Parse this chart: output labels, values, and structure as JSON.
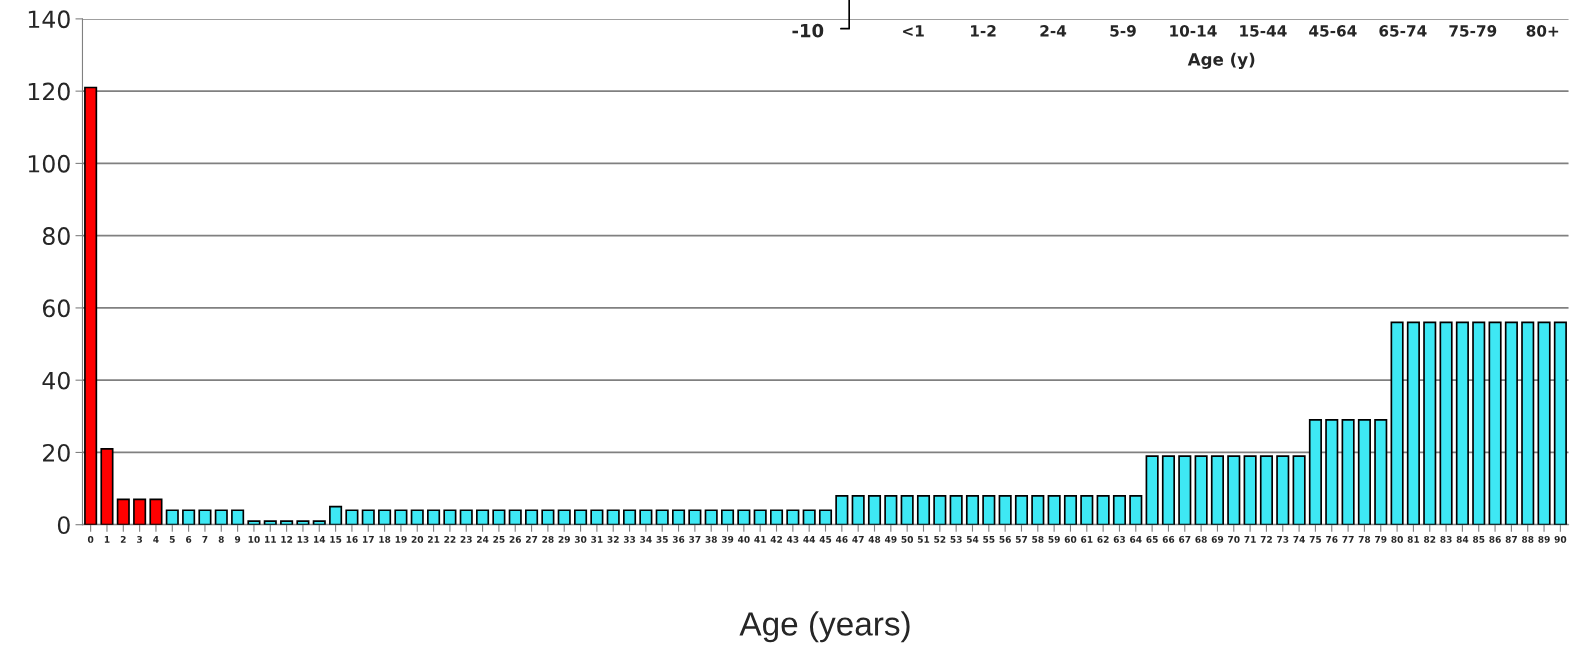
{
  "chart_data": [
    {
      "type": "bar",
      "xlabel": "Age (years)",
      "categories": [
        "0",
        "1",
        "2",
        "3",
        "4",
        "5",
        "6",
        "7",
        "8",
        "9",
        "10",
        "11",
        "12",
        "13",
        "14",
        "15",
        "16",
        "17",
        "18",
        "19",
        "20",
        "21",
        "22",
        "23",
        "24",
        "25",
        "26",
        "27",
        "28",
        "29",
        "30",
        "31",
        "32",
        "33",
        "34",
        "35",
        "36",
        "37",
        "38",
        "39",
        "40",
        "41",
        "42",
        "43",
        "44",
        "45",
        "46",
        "47",
        "48",
        "49",
        "50",
        "51",
        "52",
        "53",
        "54",
        "55",
        "56",
        "57",
        "58",
        "59",
        "60",
        "61",
        "62",
        "63",
        "64",
        "65",
        "66",
        "67",
        "68",
        "69",
        "70",
        "71",
        "72",
        "73",
        "74",
        "75",
        "76",
        "77",
        "78",
        "79",
        "80",
        "81",
        "82",
        "83",
        "84",
        "85",
        "86",
        "87",
        "88",
        "89",
        "90"
      ],
      "values": [
        121,
        21,
        7,
        7,
        7,
        4,
        4,
        4,
        4,
        4,
        1,
        1,
        1,
        1,
        1,
        5,
        4,
        4,
        4,
        4,
        4,
        4,
        4,
        4,
        4,
        4,
        4,
        4,
        4,
        4,
        4,
        4,
        4,
        4,
        4,
        4,
        4,
        4,
        4,
        4,
        4,
        4,
        4,
        4,
        4,
        4,
        8,
        8,
        8,
        8,
        8,
        8,
        8,
        8,
        8,
        8,
        8,
        8,
        8,
        8,
        8,
        8,
        8,
        8,
        8,
        19,
        19,
        19,
        19,
        19,
        19,
        19,
        19,
        19,
        19,
        29,
        29,
        29,
        29,
        29,
        56,
        56,
        56,
        56,
        56,
        56,
        56,
        56,
        56,
        56,
        56
      ],
      "colors": [
        "#ff0000",
        "#ff0000",
        "#ff0000",
        "#ff0000",
        "#ff0000",
        "#3ee8f4",
        "#3ee8f4",
        "#3ee8f4",
        "#3ee8f4",
        "#3ee8f4",
        "#3ee8f4",
        "#3ee8f4",
        "#3ee8f4",
        "#3ee8f4",
        "#3ee8f4",
        "#3ee8f4",
        "#3ee8f4",
        "#3ee8f4",
        "#3ee8f4",
        "#3ee8f4",
        "#3ee8f4",
        "#3ee8f4",
        "#3ee8f4",
        "#3ee8f4",
        "#3ee8f4",
        "#3ee8f4",
        "#3ee8f4",
        "#3ee8f4",
        "#3ee8f4",
        "#3ee8f4",
        "#3ee8f4",
        "#3ee8f4",
        "#3ee8f4",
        "#3ee8f4",
        "#3ee8f4",
        "#3ee8f4",
        "#3ee8f4",
        "#3ee8f4",
        "#3ee8f4",
        "#3ee8f4",
        "#3ee8f4",
        "#3ee8f4",
        "#3ee8f4",
        "#3ee8f4",
        "#3ee8f4",
        "#3ee8f4",
        "#3ee8f4",
        "#3ee8f4",
        "#3ee8f4",
        "#3ee8f4",
        "#3ee8f4",
        "#3ee8f4",
        "#3ee8f4",
        "#3ee8f4",
        "#3ee8f4",
        "#3ee8f4",
        "#3ee8f4",
        "#3ee8f4",
        "#3ee8f4",
        "#3ee8f4",
        "#3ee8f4",
        "#3ee8f4",
        "#3ee8f4",
        "#3ee8f4",
        "#3ee8f4",
        "#3ee8f4",
        "#3ee8f4",
        "#3ee8f4",
        "#3ee8f4",
        "#3ee8f4",
        "#3ee8f4",
        "#3ee8f4",
        "#3ee8f4",
        "#3ee8f4",
        "#3ee8f4",
        "#3ee8f4",
        "#3ee8f4",
        "#3ee8f4",
        "#3ee8f4",
        "#3ee8f4",
        "#3ee8f4",
        "#3ee8f4",
        "#3ee8f4",
        "#3ee8f4",
        "#3ee8f4",
        "#3ee8f4",
        "#3ee8f4",
        "#3ee8f4",
        "#3ee8f4",
        "#3ee8f4",
        "#3ee8f4"
      ],
      "ylim": [
        0,
        140
      ],
      "yticks": [
        0,
        20,
        40,
        60,
        80,
        100,
        120,
        140
      ],
      "grid": "y"
    },
    {
      "type": "other",
      "annotations": [
        "-10",
        "<1",
        "1-2",
        "2-4",
        "5-9",
        "10-14",
        "15-44",
        "45-64",
        "65-74",
        "75-79",
        "80+",
        "Age (y)"
      ]
    }
  ]
}
